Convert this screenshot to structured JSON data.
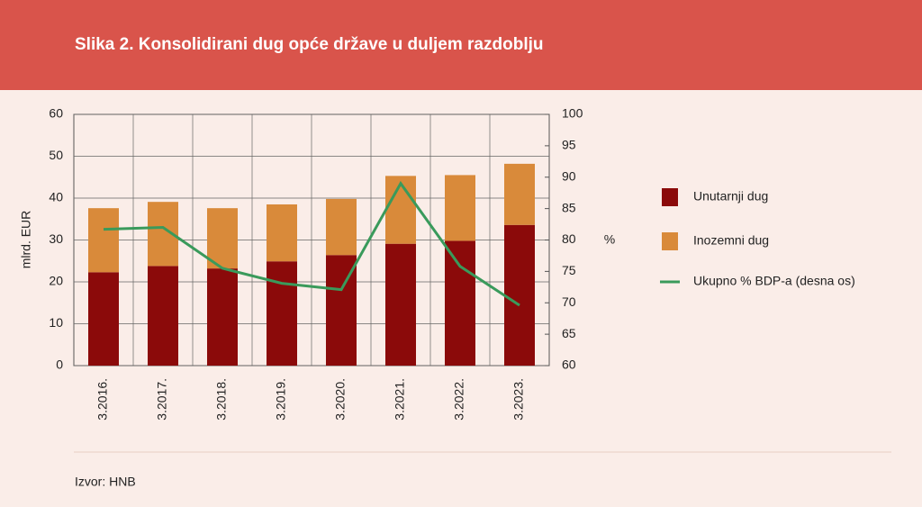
{
  "chart_data": {
    "type": "bar",
    "title": "Slika 2. Konsolidirani dug opće države u duljem razdoblju",
    "categories": [
      "3.2016.",
      "3.2017.",
      "3.2018.",
      "3.2019.",
      "3.2020.",
      "3.2021.",
      "3.2022.",
      "3.2023."
    ],
    "series": [
      {
        "name": "Unutarnji dug",
        "color": "#8b0a0a",
        "type": "bar",
        "values": [
          22.3,
          23.8,
          23.2,
          24.9,
          26.4,
          29.1,
          29.8,
          33.6
        ]
      },
      {
        "name": "Inozemni dug",
        "color": "#d98a3a",
        "type": "bar",
        "values": [
          15.3,
          15.3,
          14.4,
          13.6,
          13.4,
          16.2,
          15.7,
          14.6
        ]
      },
      {
        "name": "Ukupno % BDP-a (desna os)",
        "color": "#3a9a5b",
        "type": "line",
        "axis": "y2",
        "values": [
          81.7,
          82.0,
          75.5,
          73.1,
          72.1,
          89.0,
          75.8,
          69.6
        ]
      }
    ],
    "y_label": "mlrd. EUR",
    "y2_label": "%",
    "ylim": [
      0,
      60
    ],
    "yticks": [
      0,
      10,
      20,
      30,
      40,
      50,
      60
    ],
    "y2lim": [
      60,
      100
    ],
    "y2ticks": [
      60,
      65,
      70,
      75,
      80,
      85,
      90,
      95,
      100
    ],
    "grid": true,
    "stacked": true,
    "legend": "right",
    "source": "Izvor: HNB"
  }
}
